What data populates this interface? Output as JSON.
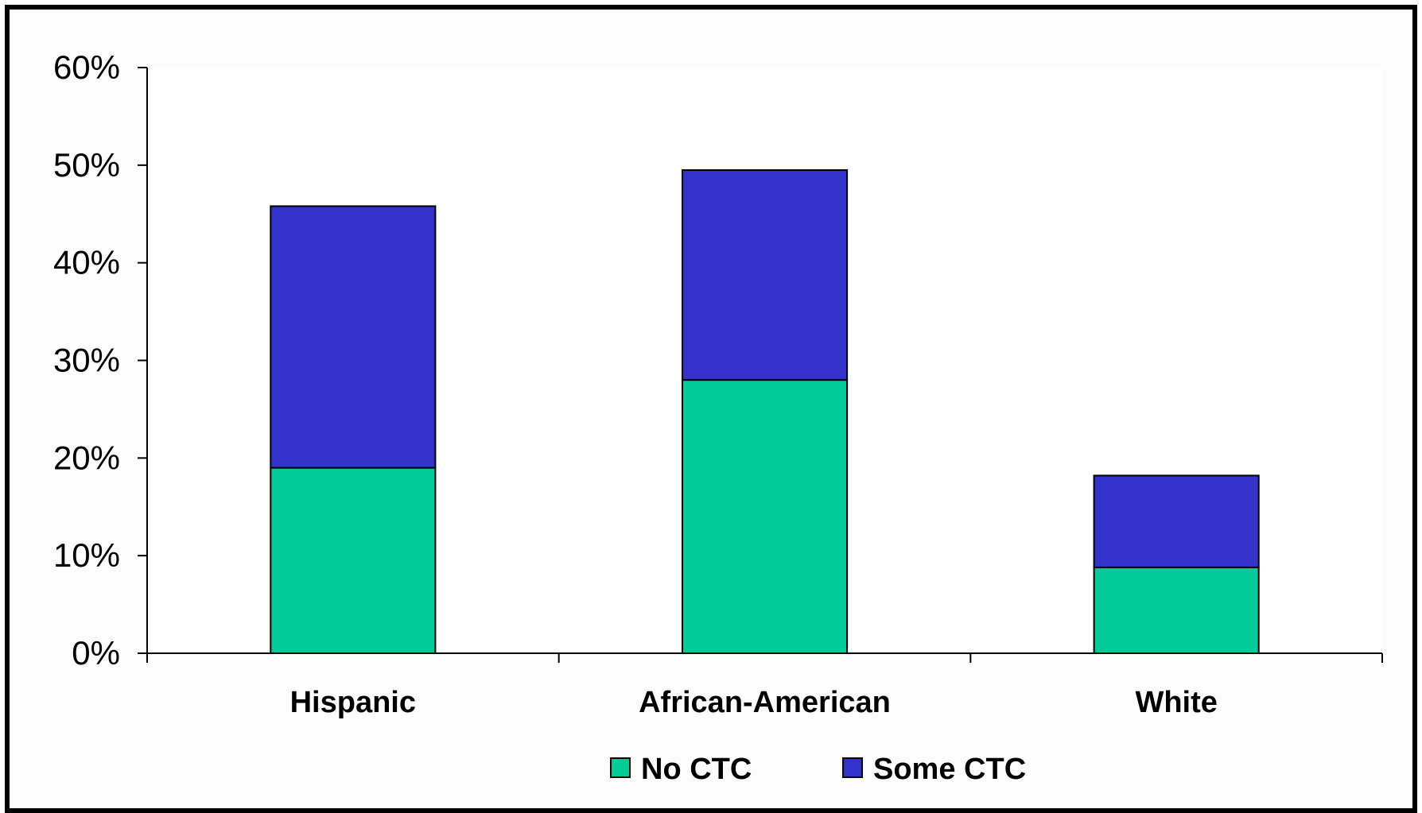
{
  "chart_data": {
    "type": "bar",
    "stacked": true,
    "categories": [
      "Hispanic",
      "African-American",
      "White"
    ],
    "series": [
      {
        "name": "No CTC",
        "values": [
          19,
          28,
          8.8
        ],
        "color": "#00cc99"
      },
      {
        "name": "Some CTC",
        "values": [
          26.8,
          21.5,
          9.4
        ],
        "color": "#3333cc"
      }
    ],
    "title": "",
    "xlabel": "",
    "ylabel": "",
    "ylim": [
      0,
      60
    ],
    "yticks": [
      "0%",
      "10%",
      "20%",
      "30%",
      "40%",
      "50%",
      "60%"
    ],
    "grid": false,
    "legend_position": "bottom-center"
  }
}
